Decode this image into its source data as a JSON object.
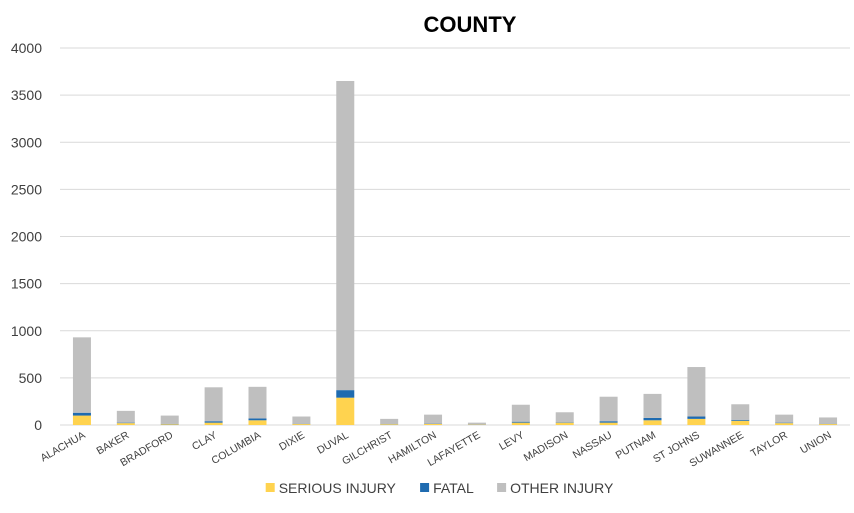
{
  "chart_data": {
    "type": "bar",
    "stacked": true,
    "title": "COUNTY",
    "xlabel": "",
    "ylabel": "",
    "ylim": [
      0,
      4000
    ],
    "yticks": [
      0,
      500,
      1000,
      1500,
      2000,
      2500,
      3000,
      3500,
      4000
    ],
    "grid": true,
    "legend_position": "bottom",
    "categories": [
      "ALACHUA",
      "BAKER",
      "BRADFORD",
      "CLAY",
      "COLUMBIA",
      "DIXIE",
      "DUVAL",
      "GILCHRIST",
      "HAMILTON",
      "LAFAYETTE",
      "LEVY",
      "MADISON",
      "NASSAU",
      "PUTNAM",
      "ST JOHNS",
      "SUWANNEE",
      "TAYLOR",
      "UNION"
    ],
    "series": [
      {
        "name": "SERIOUS INJURY",
        "color": "#FFD34F",
        "values": [
          100,
          20,
          8,
          25,
          50,
          10,
          290,
          8,
          12,
          4,
          25,
          25,
          25,
          50,
          65,
          45,
          20,
          10
        ]
      },
      {
        "name": "FATAL",
        "color": "#1F6BB0",
        "values": [
          30,
          5,
          3,
          15,
          20,
          3,
          80,
          2,
          3,
          1,
          10,
          5,
          15,
          25,
          25,
          10,
          5,
          3
        ]
      },
      {
        "name": "OTHER INJURY",
        "color": "#BFBFBF",
        "values": [
          800,
          125,
          89,
          360,
          335,
          77,
          3280,
          55,
          95,
          20,
          180,
          105,
          260,
          255,
          525,
          165,
          85,
          67
        ]
      }
    ]
  }
}
